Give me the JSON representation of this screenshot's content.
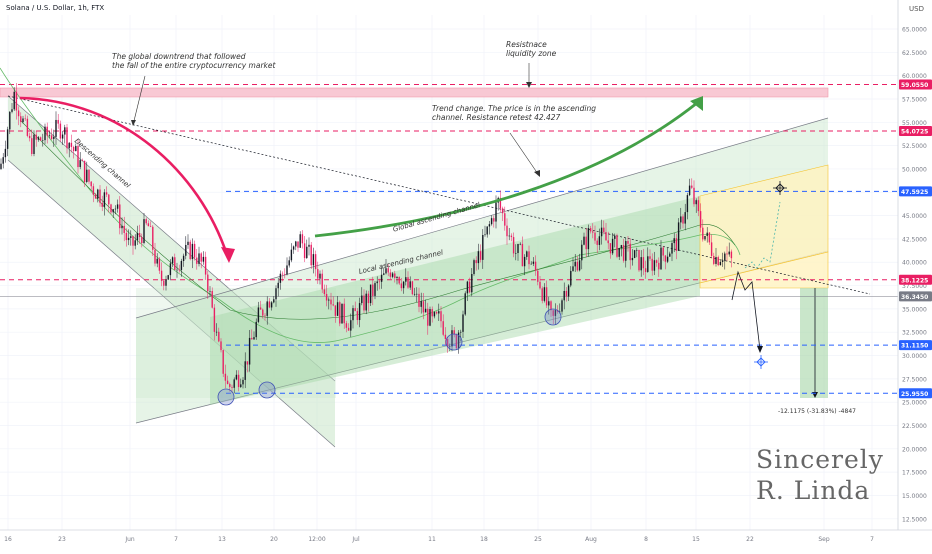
{
  "header": {
    "title": "Solana / U.S. Dollar, 1h, FTX",
    "currency": "USD"
  },
  "chart_data": {
    "type": "line",
    "title": "Solana / U.S. Dollar, 1h, FTX",
    "y_axis_unit": "USD",
    "ylim": [
      11.3,
      66.5
    ],
    "y_ticks": [
      "65.0000",
      "62.5000",
      "60.0000",
      "57.5000",
      "55.0000",
      "52.5000",
      "50.0000",
      "47.5000",
      "45.0000",
      "42.5000",
      "40.0000",
      "37.5000",
      "35.0000",
      "32.5000",
      "30.0000",
      "27.5000",
      "25.0000",
      "22.5000",
      "20.0000",
      "17.5000",
      "15.0000",
      "12.5000"
    ],
    "x_ticks": [
      "16",
      "23",
      "Jun",
      "7",
      "13",
      "20",
      "12:00",
      "Jul",
      "11",
      "18",
      "25",
      "Aug",
      "8",
      "15",
      "22",
      "Sep",
      "7"
    ],
    "price_markers": [
      {
        "value": 59.055,
        "label": "59.0550",
        "color": "#e91e63"
      },
      {
        "value": 54.0725,
        "label": "54.0725",
        "color": "#e91e63"
      },
      {
        "value": 47.5925,
        "label": "47.5925",
        "color": "#2962ff"
      },
      {
        "value": 38.1225,
        "label": "38.1225",
        "color": "#e91e63"
      },
      {
        "value": 36.345,
        "label": "36.3450",
        "color": "#787b86"
      },
      {
        "value": 31.115,
        "label": "31.1150",
        "color": "#2962ff"
      },
      {
        "value": 25.955,
        "label": "25.9550",
        "color": "#2962ff"
      }
    ],
    "series": [
      {
        "x": [
          "16",
          "18",
          "20",
          "23",
          "26",
          "28",
          "Jun",
          "3",
          "5",
          "7",
          "9",
          "11",
          "13",
          "14",
          "16",
          "18",
          "20",
          "23",
          "25",
          "27",
          "29",
          "Jul",
          "3",
          "5",
          "7",
          "9",
          "11",
          "13",
          "15",
          "18",
          "20",
          "22",
          "25",
          "27",
          "29",
          "Aug",
          "3",
          "5",
          "8",
          "10",
          "12",
          "15",
          "17",
          "19",
          "20",
          "21"
        ],
        "values": [
          50.0,
          58.2,
          52.5,
          54.5,
          48.0,
          46.0,
          41.5,
          44.0,
          38.0,
          40.0,
          41.5,
          39.0,
          31.0,
          26.5,
          28.5,
          34.0,
          37.0,
          42.5,
          39.0,
          35.0,
          33.5,
          34.5,
          39.5,
          37.0,
          33.5,
          34.0,
          32.0,
          31.5,
          38.0,
          46.5,
          41.0,
          40.5,
          38.5,
          33.5,
          38.5,
          43.5,
          42.0,
          41.0,
          39.5,
          40.5,
          42.0,
          48.0,
          43.5,
          40.5,
          41.0,
          40.0
        ]
      }
    ],
    "annotations": [
      "The global downtrend that followed\nthe fall of the entire cryptocurrency market",
      "Resistnace\nliquidity zone",
      "Trend change. The price is in the ascending\nchannel. Resistance retest 42.427"
    ],
    "channel_labels": [
      "Descending channel",
      "Global ascending channel",
      "Local ascending channel"
    ],
    "measure_label": "-12.1175 (-31.83%) -4847",
    "grid": true,
    "colors": {
      "up": "#26a69a",
      "down": "#e91e63",
      "line": "#131722",
      "blue": "#2962ff",
      "red": "#e91e63",
      "green": "#43a047"
    }
  },
  "signature": "Sincerely\nR. Linda"
}
